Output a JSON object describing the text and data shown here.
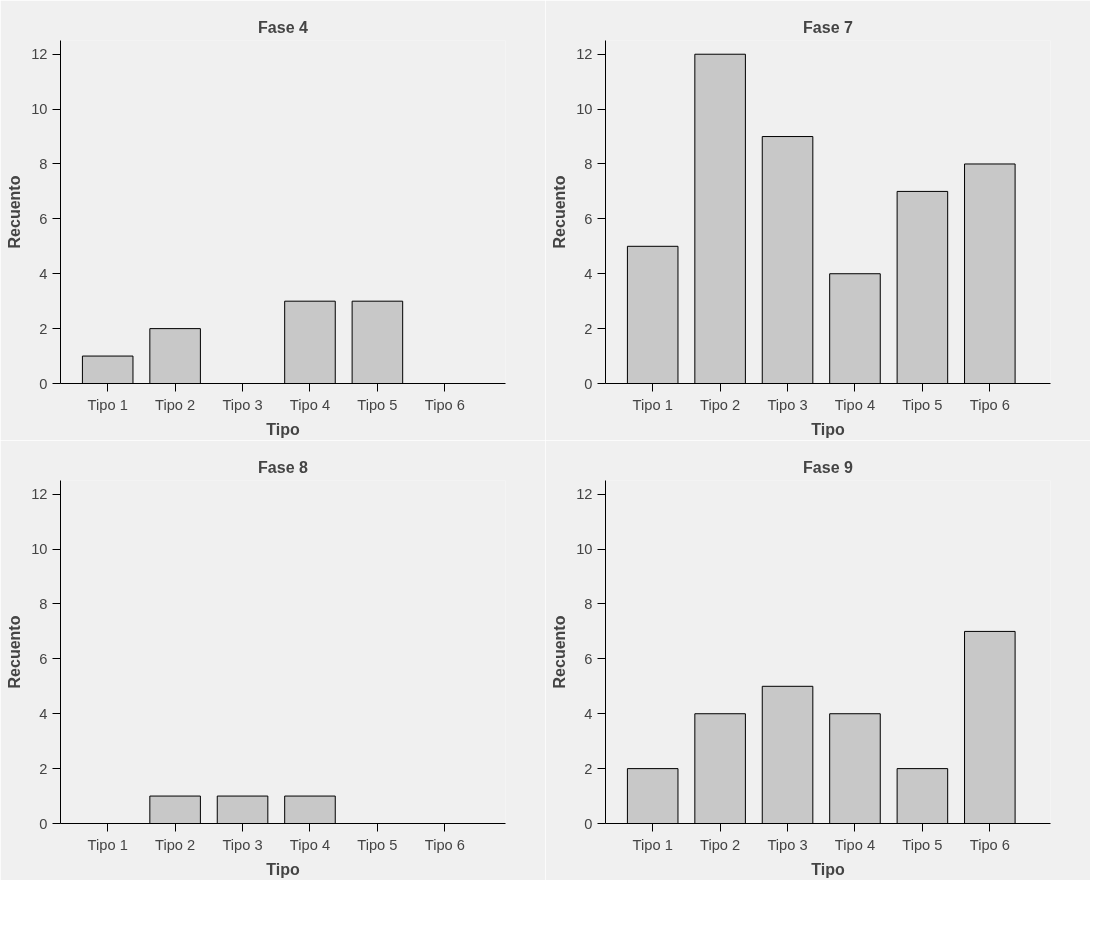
{
  "chart_data": [
    {
      "type": "bar",
      "title": "Fase 4",
      "xlabel": "Tipo",
      "ylabel": "Recuento",
      "categories": [
        "Tipo 1",
        "Tipo 2",
        "Tipo 3",
        "Tipo 4",
        "Tipo 5",
        "Tipo 6"
      ],
      "values": [
        1,
        2,
        null,
        3,
        3,
        null
      ],
      "color": "#c8c8c8",
      "ylim": [
        0,
        12.5
      ],
      "yticks": [
        0,
        2,
        4,
        6,
        8,
        10,
        12
      ]
    },
    {
      "type": "bar",
      "title": "Fase 7",
      "xlabel": "Tipo",
      "ylabel": "Recuento",
      "categories": [
        "Tipo 1",
        "Tipo 2",
        "Tipo 3",
        "Tipo 4",
        "Tipo 5",
        "Tipo 6"
      ],
      "values": [
        5,
        12,
        9,
        4,
        7,
        8
      ],
      "color": "#c8c8c8",
      "ylim": [
        0,
        12.5
      ],
      "yticks": [
        0,
        2,
        4,
        6,
        8,
        10,
        12
      ]
    },
    {
      "type": "bar",
      "title": "Fase 8",
      "xlabel": "Tipo",
      "ylabel": "Recuento",
      "categories": [
        "Tipo 1",
        "Tipo 2",
        "Tipo 3",
        "Tipo 4",
        "Tipo 5",
        "Tipo 6"
      ],
      "values": [
        null,
        1,
        1,
        1,
        null,
        null
      ],
      "color": "#c8c8c8",
      "ylim": [
        0,
        12.5
      ],
      "yticks": [
        0,
        2,
        4,
        6,
        8,
        10,
        12
      ]
    },
    {
      "type": "bar",
      "title": "Fase 9",
      "xlabel": "Tipo",
      "ylabel": "Recuento",
      "categories": [
        "Tipo 1",
        "Tipo 2",
        "Tipo 3",
        "Tipo 4",
        "Tipo 5",
        "Tipo 6"
      ],
      "values": [
        2,
        4,
        5,
        4,
        2,
        7
      ],
      "color": "#c8c8c8",
      "ylim": [
        0,
        12.5
      ],
      "yticks": [
        0,
        2,
        4,
        6,
        8,
        10,
        12
      ]
    }
  ]
}
